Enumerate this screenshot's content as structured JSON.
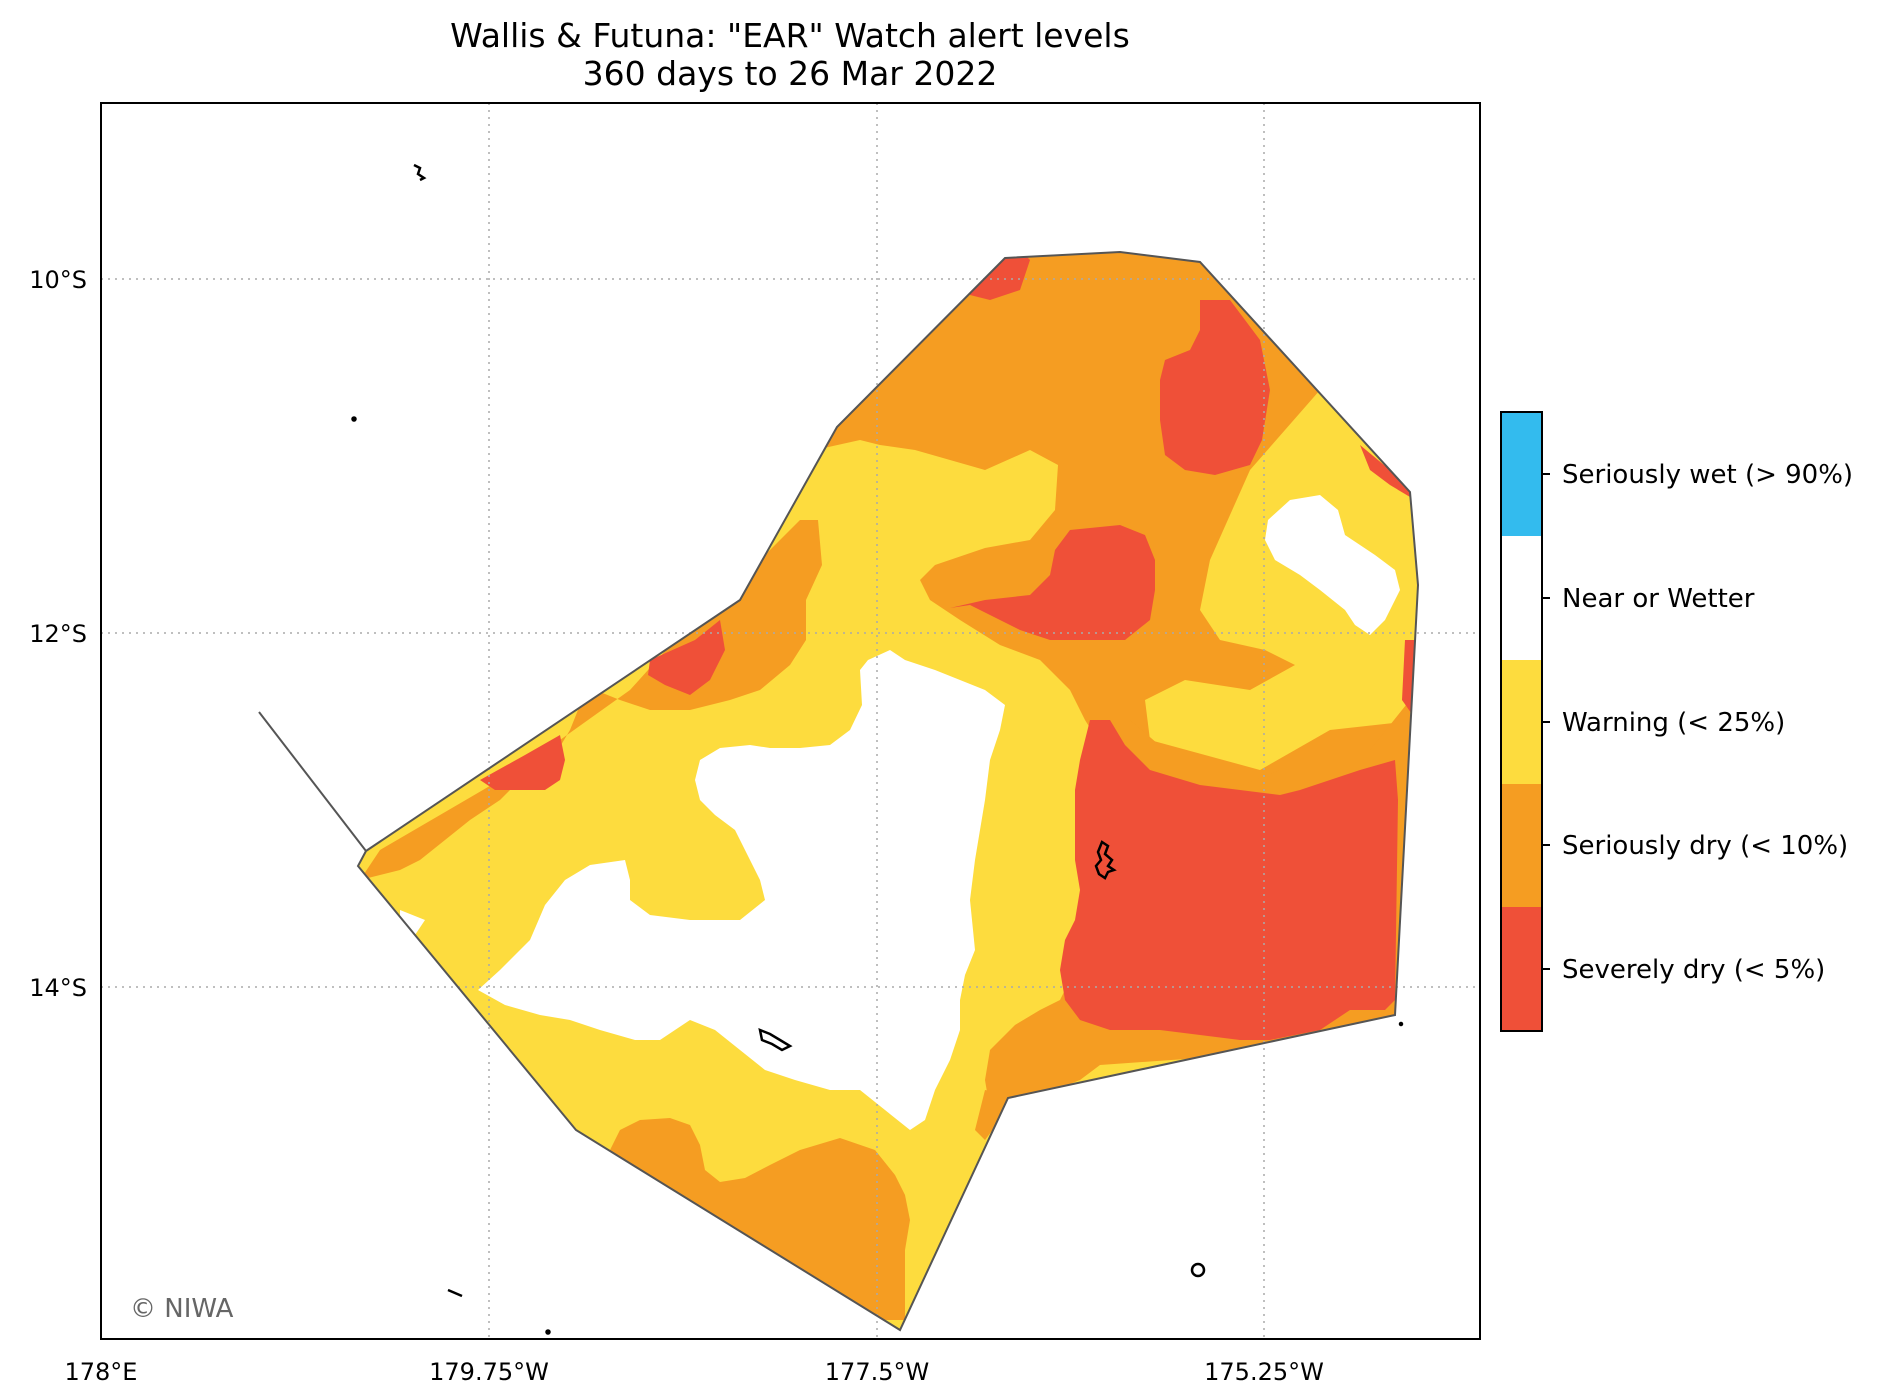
{
  "title": {
    "line1": "Wallis & Futuna: \"EAR\" Watch alert levels",
    "line2": "360 days to 26 Mar 2022"
  },
  "axes": {
    "lat_ticks": [
      "10°S",
      "12°S",
      "14°S"
    ],
    "lon_ticks": [
      "178°E",
      "179.75°W",
      "177.5°W",
      "175.25°W"
    ]
  },
  "legend": {
    "items": [
      {
        "label": "Seriously wet (> 90%)",
        "color": "#33bbee"
      },
      {
        "label": "Near or Wetter",
        "color": "#ffffff"
      },
      {
        "label": "Warning (< 25%)",
        "color": "#fddc3e"
      },
      {
        "label": "Seriously dry (< 10%)",
        "color": "#f59d22"
      },
      {
        "label": "Severely dry (< 5%)",
        "color": "#ef5038"
      }
    ]
  },
  "colors": {
    "warning": "#fddc3e",
    "seriously_dry": "#f59d22",
    "severely_dry": "#ef5038",
    "near_or_wetter": "#ffffff",
    "eez_outline": "#555555"
  },
  "copyright": "© NIWA"
}
